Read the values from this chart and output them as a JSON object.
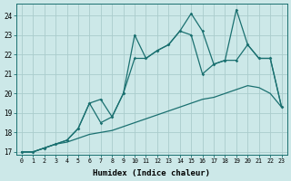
{
  "xlabel": "Humidex (Indice chaleur)",
  "background_color": "#cce8e8",
  "grid_color": "#aacccc",
  "line_color": "#1a7070",
  "xlim_min": -0.5,
  "xlim_max": 23.5,
  "ylim_min": 16.85,
  "ylim_max": 24.6,
  "xticks": [
    0,
    1,
    2,
    3,
    4,
    5,
    6,
    7,
    8,
    9,
    10,
    11,
    12,
    13,
    14,
    15,
    16,
    17,
    18,
    19,
    20,
    21,
    22,
    23
  ],
  "yticks": [
    17,
    18,
    19,
    20,
    21,
    22,
    23,
    24
  ],
  "line_bottom_x": [
    0,
    1,
    2,
    3,
    4,
    5,
    6,
    7,
    8,
    9,
    10,
    11,
    12,
    13,
    14,
    15,
    16,
    17,
    18,
    19,
    20,
    21,
    22,
    23
  ],
  "line_bottom_y": [
    17.0,
    17.0,
    17.2,
    17.4,
    17.5,
    17.7,
    17.9,
    18.0,
    18.1,
    18.3,
    18.5,
    18.7,
    18.9,
    19.1,
    19.3,
    19.5,
    19.7,
    19.8,
    20.0,
    20.2,
    20.4,
    20.3,
    20.0,
    19.3
  ],
  "line_mid_x": [
    0,
    1,
    2,
    3,
    4,
    5,
    6,
    7,
    8,
    9,
    10,
    11,
    12,
    13,
    14,
    15,
    16,
    17,
    18,
    19,
    20,
    21,
    22,
    23
  ],
  "line_mid_y": [
    17.0,
    17.0,
    17.2,
    17.4,
    17.6,
    18.2,
    19.5,
    19.7,
    18.8,
    20.0,
    21.8,
    21.8,
    22.2,
    22.5,
    23.2,
    23.0,
    21.0,
    21.5,
    21.7,
    21.7,
    22.5,
    21.8,
    21.8,
    19.3
  ],
  "line_top_x": [
    0,
    1,
    2,
    3,
    4,
    5,
    6,
    7,
    8,
    9,
    10,
    11,
    12,
    13,
    14,
    15,
    16,
    17,
    18,
    19,
    20,
    21,
    22,
    23
  ],
  "line_top_y": [
    17.0,
    17.0,
    17.2,
    17.4,
    17.6,
    18.2,
    19.5,
    18.5,
    18.8,
    20.0,
    23.0,
    21.8,
    22.2,
    22.5,
    23.2,
    24.1,
    23.2,
    21.5,
    21.7,
    24.3,
    22.5,
    21.8,
    21.8,
    19.3
  ]
}
